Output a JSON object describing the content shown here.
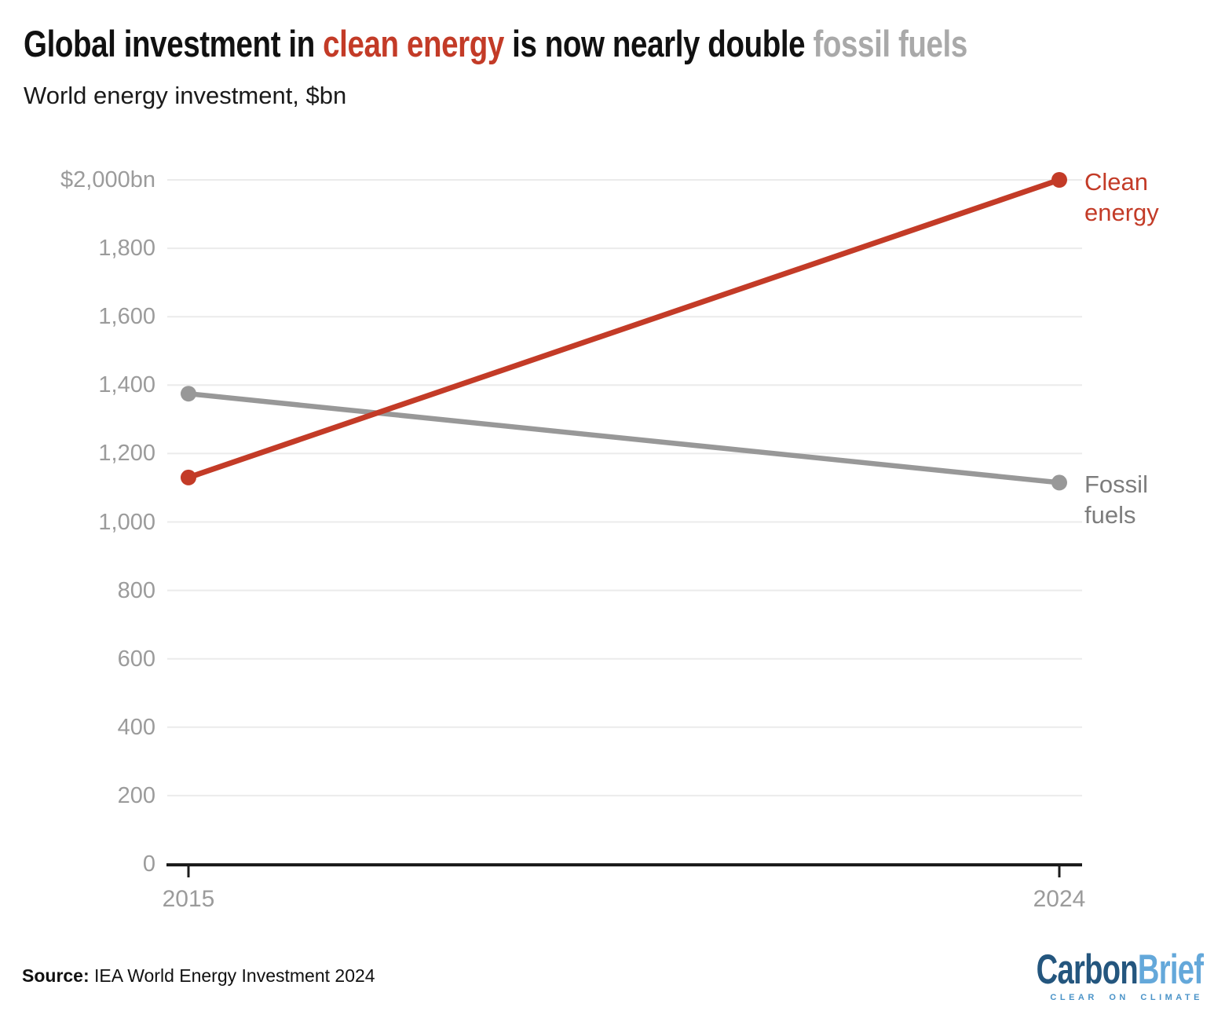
{
  "title": {
    "part1": "Global investment in ",
    "highlight_clean": "clean energy",
    "part2": " is now nearly double ",
    "highlight_fossil": "fossil fuels"
  },
  "subtitle": "World energy investment, $bn",
  "source": {
    "label": "Source:",
    "text": " IEA World Energy Investment 2024"
  },
  "logo": {
    "part1": "Carbon",
    "part2": "Brief",
    "tagline": "CLEAR ON CLIMATE"
  },
  "colors": {
    "clean_energy": "#c33b27",
    "fossil_line": "#989898",
    "fossil_title_highlight": "#a9a9a9",
    "fossil_label_text": "#7d7d7d",
    "axis_text": "#9b9b9b",
    "gridline": "#ebebeb",
    "axis_line": "#1c1c1c",
    "title_text": "#111111",
    "logo_carbon": "#24567e",
    "logo_brief": "#64a8da",
    "logo_tagline": "#4a93c8"
  },
  "chart_data": {
    "type": "line",
    "title": "Global investment in clean energy is now nearly double fossil fuels",
    "subtitle": "World energy investment, $bn",
    "x": [
      2015,
      2024
    ],
    "x_tick_labels": [
      "2015",
      "2024"
    ],
    "series": [
      {
        "name": "Clean energy",
        "label": "Clean\nenergy",
        "values": [
          1130,
          2000
        ],
        "color": "#c33b27"
      },
      {
        "name": "Fossil fuels",
        "label": "Fossil\nfuels",
        "values": [
          1375,
          1115
        ],
        "color": "#989898"
      }
    ],
    "ylim": [
      0,
      2000
    ],
    "y_ticks": [
      2000,
      1800,
      1600,
      1400,
      1200,
      1000,
      800,
      600,
      400,
      200,
      0
    ],
    "y_tick_labels": [
      "$2,000bn",
      "1,800",
      "1,600",
      "1,400",
      "1,200",
      "1,000",
      "800",
      "600",
      "400",
      "200",
      "0"
    ],
    "grid": "horizontal",
    "legend_position": "right-of-line-ends",
    "source": "IEA World Energy Investment 2024"
  }
}
